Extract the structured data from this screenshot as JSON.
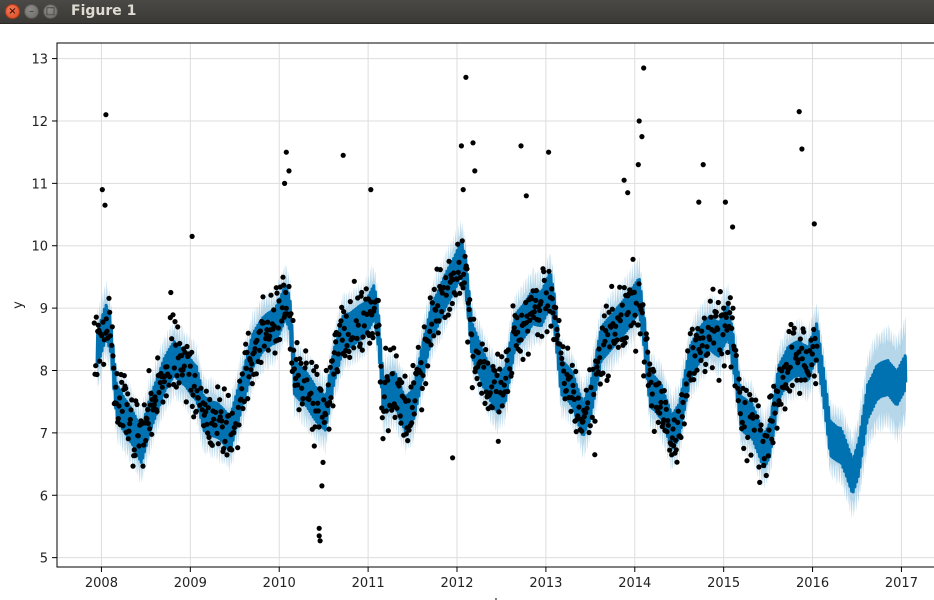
{
  "window": {
    "title": "Figure 1",
    "close_glyph": "×",
    "min_glyph": "–",
    "max_glyph": "□"
  },
  "chart_data": {
    "type": "scatter",
    "title": "",
    "xlabel": "ds",
    "ylabel": "y",
    "grid": true,
    "xlim": [
      2007.5,
      2017.4
    ],
    "ylim": [
      4.85,
      13.25
    ],
    "x_ticks": [
      2008,
      2009,
      2010,
      2011,
      2012,
      2013,
      2014,
      2015,
      2016,
      2017
    ],
    "x_tick_labels": [
      "2008",
      "2009",
      "2010",
      "2011",
      "2012",
      "2013",
      "2014",
      "2015",
      "2016",
      "2017"
    ],
    "y_ticks": [
      5,
      6,
      7,
      8,
      9,
      10,
      11,
      12,
      13
    ],
    "y_tick_labels": [
      "5",
      "6",
      "7",
      "8",
      "9",
      "10",
      "11",
      "12",
      "13"
    ],
    "colors": {
      "observed": "#000000",
      "forecast": "#0072B2",
      "interval": "#9ecae1"
    },
    "forecast": {
      "x": [
        2007.95,
        2008.05,
        2008.1,
        2008.17,
        2008.3,
        2008.45,
        2008.55,
        2008.7,
        2008.82,
        2008.95,
        2009.07,
        2009.15,
        2009.3,
        2009.45,
        2009.55,
        2009.7,
        2009.82,
        2009.95,
        2010.07,
        2010.12,
        2010.17,
        2010.3,
        2010.45,
        2010.52,
        2010.62,
        2010.72,
        2010.85,
        2010.95,
        2011.07,
        2011.12,
        2011.17,
        2011.3,
        2011.42,
        2011.5,
        2011.62,
        2011.72,
        2011.85,
        2011.95,
        2012.05,
        2012.1,
        2012.17,
        2012.3,
        2012.45,
        2012.55,
        2012.65,
        2012.75,
        2012.85,
        2012.95,
        2013.05,
        2013.1,
        2013.17,
        2013.3,
        2013.42,
        2013.5,
        2013.62,
        2013.72,
        2013.85,
        2013.95,
        2014.05,
        2014.1,
        2014.17,
        2014.3,
        2014.42,
        2014.5,
        2014.62,
        2014.72,
        2014.85,
        2014.95,
        2015.05,
        2015.12,
        2015.2,
        2015.32,
        2015.45,
        2015.52,
        2015.62,
        2015.72,
        2015.85,
        2015.95,
        2016.05,
        2016.12,
        2016.2,
        2016.32,
        2016.45,
        2016.52,
        2016.62,
        2016.72,
        2016.85,
        2016.95,
        2017.05
      ],
      "yhat": [
        8.3,
        8.8,
        8.6,
        7.5,
        7.2,
        6.8,
        7.3,
        7.9,
        8.2,
        8.0,
        7.8,
        7.3,
        7.2,
        7.0,
        7.5,
        8.3,
        8.6,
        8.7,
        9.1,
        8.9,
        7.9,
        7.7,
        7.4,
        7.3,
        8.1,
        8.6,
        8.7,
        8.8,
        9.1,
        8.6,
        7.6,
        7.7,
        7.3,
        7.4,
        8.2,
        8.8,
        9.2,
        9.5,
        9.8,
        9.5,
        8.5,
        8.0,
        7.6,
        7.8,
        8.6,
        8.8,
        9.0,
        9.0,
        9.3,
        8.9,
        7.9,
        7.7,
        7.2,
        7.5,
        8.4,
        8.6,
        8.8,
        9.0,
        9.2,
        8.7,
        7.7,
        7.5,
        7.0,
        7.2,
        8.1,
        8.4,
        8.6,
        8.5,
        8.8,
        8.2,
        7.3,
        7.2,
        6.7,
        6.9,
        7.8,
        8.1,
        8.2,
        8.1,
        8.5,
        7.8,
        6.9,
        6.8,
        6.3,
        6.6,
        7.5,
        7.8,
        7.9,
        7.7,
        8.0
      ],
      "band_halfwidth": [
        0.45,
        0.45,
        0.45,
        0.45,
        0.45,
        0.45,
        0.45,
        0.45,
        0.45,
        0.45,
        0.45,
        0.45,
        0.45,
        0.45,
        0.45,
        0.45,
        0.45,
        0.45,
        0.45,
        0.45,
        0.45,
        0.45,
        0.45,
        0.45,
        0.45,
        0.45,
        0.45,
        0.45,
        0.45,
        0.45,
        0.45,
        0.45,
        0.45,
        0.45,
        0.45,
        0.45,
        0.45,
        0.45,
        0.45,
        0.45,
        0.45,
        0.45,
        0.45,
        0.45,
        0.45,
        0.45,
        0.45,
        0.45,
        0.45,
        0.45,
        0.45,
        0.45,
        0.45,
        0.45,
        0.45,
        0.45,
        0.45,
        0.45,
        0.45,
        0.45,
        0.45,
        0.45,
        0.45,
        0.45,
        0.45,
        0.45,
        0.45,
        0.45,
        0.45,
        0.45,
        0.45,
        0.45,
        0.45,
        0.45,
        0.45,
        0.45,
        0.45,
        0.45,
        0.45,
        0.45,
        0.45,
        0.45,
        0.5,
        0.55,
        0.6,
        0.62,
        0.65,
        0.68,
        0.7
      ]
    },
    "observed_outliers": [
      {
        "x": 2008.05,
        "y": 12.1
      },
      {
        "x": 2008.01,
        "y": 10.9
      },
      {
        "x": 2008.04,
        "y": 10.65
      },
      {
        "x": 2008.78,
        "y": 9.25
      },
      {
        "x": 2009.02,
        "y": 10.15
      },
      {
        "x": 2010.08,
        "y": 11.5
      },
      {
        "x": 2010.11,
        "y": 11.2
      },
      {
        "x": 2010.06,
        "y": 11.0
      },
      {
        "x": 2010.45,
        "y": 5.47
      },
      {
        "x": 2010.45,
        "y": 5.35
      },
      {
        "x": 2010.46,
        "y": 5.27
      },
      {
        "x": 2010.48,
        "y": 6.15
      },
      {
        "x": 2010.72,
        "y": 11.45
      },
      {
        "x": 2011.03,
        "y": 10.9
      },
      {
        "x": 2011.95,
        "y": 6.6
      },
      {
        "x": 2012.1,
        "y": 12.7
      },
      {
        "x": 2012.05,
        "y": 11.6
      },
      {
        "x": 2012.18,
        "y": 11.65
      },
      {
        "x": 2012.2,
        "y": 11.2
      },
      {
        "x": 2012.07,
        "y": 10.9
      },
      {
        "x": 2012.72,
        "y": 11.6
      },
      {
        "x": 2012.78,
        "y": 10.8
      },
      {
        "x": 2013.03,
        "y": 11.5
      },
      {
        "x": 2013.55,
        "y": 6.65
      },
      {
        "x": 2013.88,
        "y": 11.05
      },
      {
        "x": 2013.92,
        "y": 10.85
      },
      {
        "x": 2014.05,
        "y": 12.0
      },
      {
        "x": 2014.1,
        "y": 12.85
      },
      {
        "x": 2014.08,
        "y": 11.75
      },
      {
        "x": 2014.04,
        "y": 11.3
      },
      {
        "x": 2014.77,
        "y": 11.3
      },
      {
        "x": 2014.72,
        "y": 10.7
      },
      {
        "x": 2015.02,
        "y": 10.7
      },
      {
        "x": 2015.1,
        "y": 10.3
      },
      {
        "x": 2015.85,
        "y": 12.15
      },
      {
        "x": 2015.88,
        "y": 11.55
      },
      {
        "x": 2016.02,
        "y": 10.35
      }
    ],
    "observed_range": [
      2007.92,
      2016.05
    ],
    "observed_spread": 0.55
  }
}
